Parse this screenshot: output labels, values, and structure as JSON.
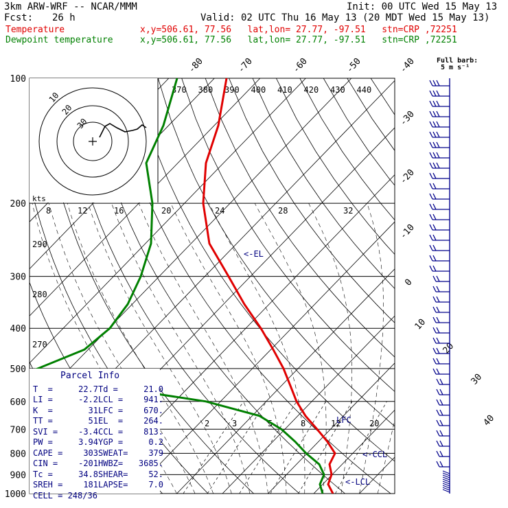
{
  "header": {
    "model": "3km ARW-WRF -- NCAR/MMM",
    "init": "Init: 00 UTC Wed 15 May 13",
    "fcst_label": "Fcst:",
    "fcst_value": "26 h",
    "valid": "Valid: 02 UTC Thu 16 May 13 (20 MDT Wed 15 May 13)",
    "temp_label": "Temperature",
    "dew_label": "Dewpoint temperature",
    "temp_loc": "x,y=506.61, 77.56   lat,lon= 27.77, -97.51   stn=CRP ,72251",
    "dew_loc": "x,y=506.61, 77.56   lat,lon= 27.77, -97.51   stn=CRP ,72251",
    "barb_title": "Full barb:",
    "barb_unit": "5 m s⁻¹"
  },
  "colors": {
    "temperature": "#e00000",
    "dewpoint": "#008000",
    "text": "#000000",
    "parcel": "#000080",
    "grid": "#000000"
  },
  "chart_data": {
    "type": "line",
    "chart_kind": "skew-T log-P sounding",
    "y_axis_scale": "log pressure (hPa)",
    "pressure_ticks": [
      100,
      200,
      300,
      400,
      500,
      600,
      700,
      800,
      900,
      1000
    ],
    "pressure_tick_labels": [
      "100",
      "200",
      "300",
      "400",
      "500",
      "600",
      "700",
      "800",
      "900",
      "1000"
    ],
    "temp_range_bottom": [
      -40,
      40
    ],
    "isotherm_labels": [
      "-80",
      "-70",
      "-60",
      "-50",
      "-40",
      "-30",
      "-20",
      "-10",
      "0",
      "10",
      "20",
      "30",
      "40"
    ],
    "mixing_ratio_labels": [
      "2",
      "3",
      "5",
      "8",
      "12",
      "20"
    ],
    "theta_e_labels": [
      "370",
      "380",
      "390",
      "400",
      "410",
      "420",
      "430",
      "440"
    ],
    "series": [
      {
        "name": "Temperature",
        "color": "#e00000",
        "points": [
          [
            100,
            -64
          ],
          [
            130,
            -61
          ],
          [
            160,
            -61
          ],
          [
            200,
            -57
          ],
          [
            250,
            -47
          ],
          [
            300,
            -38
          ],
          [
            350,
            -28
          ],
          [
            400,
            -21
          ],
          [
            450,
            -17
          ],
          [
            500,
            -11
          ],
          [
            550,
            -6
          ],
          [
            600,
            -1
          ],
          [
            650,
            5
          ],
          [
            700,
            11
          ],
          [
            750,
            15
          ],
          [
            800,
            20.5
          ],
          [
            850,
            21.5
          ],
          [
            900,
            22
          ],
          [
            950,
            22.5
          ],
          [
            1000,
            22.7
          ]
        ]
      },
      {
        "name": "Dewpoint temperature",
        "color": "#008000",
        "points": [
          [
            100,
            -80
          ],
          [
            130,
            -86
          ],
          [
            160,
            -89
          ],
          [
            200,
            -80
          ],
          [
            250,
            -70
          ],
          [
            300,
            -67
          ],
          [
            350,
            -66
          ],
          [
            400,
            -68
          ],
          [
            450,
            -74
          ],
          [
            500,
            -80
          ],
          [
            550,
            -60
          ],
          [
            600,
            -28
          ],
          [
            650,
            -6
          ],
          [
            700,
            5
          ],
          [
            750,
            12
          ],
          [
            800,
            16
          ],
          [
            850,
            20
          ],
          [
            900,
            20
          ],
          [
            950,
            20
          ],
          [
            1000,
            21
          ]
        ]
      }
    ],
    "parcel_levels": [
      {
        "label": "<-EL",
        "p": 264
      },
      {
        "label": "LFC",
        "p": 670
      },
      {
        "label": "<-CCL",
        "p": 813
      },
      {
        "label": "<-LCL",
        "p": 941
      }
    ],
    "hodograph": {
      "unit_label": "kts",
      "ring_labels": [
        "10",
        "20",
        "30"
      ],
      "speed_labels": [
        "8",
        "12",
        "16",
        "20",
        "24",
        "28",
        "32"
      ],
      "speed_label_value": "290",
      "speed_label_value2": "280",
      "speed_label_value3": "270"
    },
    "parcel_info": {
      "title": "Parcel Info",
      "rows": [
        [
          "T  =",
          "22.7",
          "Td =",
          "21.0"
        ],
        [
          "LI =",
          "-2.2",
          "LCL =",
          "941."
        ],
        [
          "K  =",
          "31",
          "LFC =",
          "670."
        ],
        [
          "TT =",
          "51",
          "EL  =",
          "264."
        ],
        [
          "SVI =",
          "-3.4",
          "CCL =",
          "813."
        ],
        [
          "PW =",
          "3.94",
          "YGP =",
          "0.2"
        ],
        [
          "CAPE =",
          "303",
          "SWEAT=",
          "379"
        ],
        [
          "CIN =",
          "-201",
          "HWBZ=",
          "3685."
        ],
        [
          "Tc =",
          "34.8",
          "SHEAR=",
          "52."
        ],
        [
          "SREH =",
          "181",
          "LAPSE=",
          "7.0"
        ]
      ],
      "cell": "CELL = 248/36"
    }
  }
}
